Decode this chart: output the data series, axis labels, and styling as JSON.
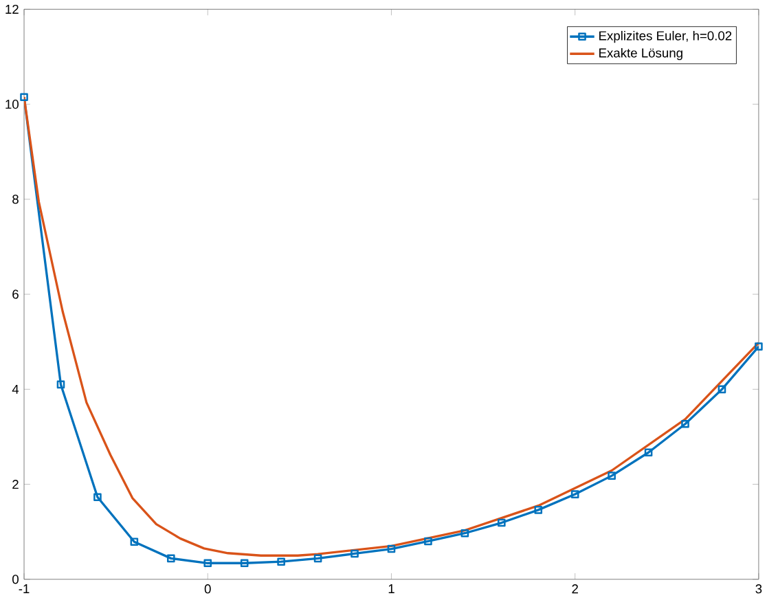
{
  "chart_data": {
    "type": "line",
    "xlim": [
      -1,
      3
    ],
    "ylim": [
      0,
      12
    ],
    "xticks": [
      -1,
      0,
      1,
      2,
      3
    ],
    "yticks": [
      0,
      2,
      4,
      6,
      8,
      10,
      12
    ],
    "grid": false,
    "legend": "top right",
    "series": [
      {
        "name": "Explizites Euler, h=0.02",
        "color": "#0072bd",
        "marker": "square",
        "x": [
          -1,
          -0.8,
          -0.6,
          -0.4,
          -0.2,
          0,
          0.2,
          0.4,
          0.6,
          0.8,
          1,
          1.2,
          1.4,
          1.6,
          1.8,
          2,
          2.2,
          2.4,
          2.6,
          2.8,
          3
        ],
        "values": [
          10.15,
          4.1,
          1.73,
          0.79,
          0.44,
          0.34,
          0.34,
          0.37,
          0.44,
          0.54,
          0.64,
          0.8,
          0.97,
          1.19,
          1.46,
          1.79,
          2.18,
          2.67,
          3.27,
          4.0,
          4.9
        ]
      },
      {
        "name": "Exakte Lösung",
        "color": "#d95319",
        "marker": "none",
        "x": [
          -1,
          -0.92,
          -0.79,
          -0.66,
          -0.53,
          -0.41,
          -0.28,
          -0.15,
          -0.02,
          0.11,
          0.29,
          0.49,
          0.6,
          1,
          1.4,
          1.8,
          2.2,
          2.6,
          3
        ],
        "values": [
          10.15,
          7.95,
          5.64,
          3.72,
          2.62,
          1.71,
          1.16,
          0.86,
          0.65,
          0.55,
          0.5,
          0.5,
          0.53,
          0.7,
          1.03,
          1.55,
          2.29,
          3.37,
          4.98
        ]
      }
    ]
  }
}
